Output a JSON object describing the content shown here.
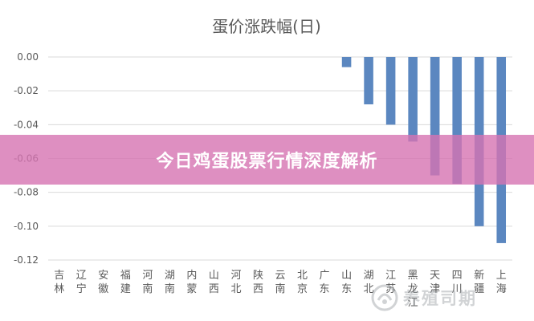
{
  "chart_data": {
    "type": "bar",
    "title": "蛋价涨跌幅(日)",
    "xlabel": "",
    "ylabel": "",
    "ylim": [
      -0.12,
      0.0
    ],
    "yticks": [
      "0.00",
      "-0.02",
      "-0.04",
      "-0.06",
      "-0.08",
      "-0.10",
      "-0.12"
    ],
    "yticks_values": [
      0.0,
      -0.02,
      -0.04,
      -0.06,
      -0.08,
      -0.1,
      -0.12
    ],
    "grid": true,
    "legend": "none",
    "categories": [
      "吉林",
      "辽宁",
      "安徽",
      "福建",
      "河南",
      "湖南",
      "内蒙",
      "山西",
      "河北",
      "陕西",
      "云南",
      "北京",
      "广东",
      "山东",
      "湖北",
      "江苏",
      "黑龙江",
      "天津",
      "四川",
      "新疆",
      "上海"
    ],
    "values": [
      0,
      0,
      0,
      0,
      0,
      0,
      0,
      0,
      0,
      0,
      0,
      0,
      0,
      -0.006,
      -0.028,
      -0.04,
      -0.05,
      -0.07,
      -0.075,
      -0.1,
      -0.11
    ],
    "bar_color": "#5b87c0"
  },
  "banner": {
    "text": "今日鸡蛋股票行情深度解析"
  },
  "watermark": {
    "text": "养殖司期"
  },
  "colors": {
    "title": "#595959",
    "tick": "#595959",
    "axis": "#d9d9d9",
    "banner": "#d673b2"
  }
}
